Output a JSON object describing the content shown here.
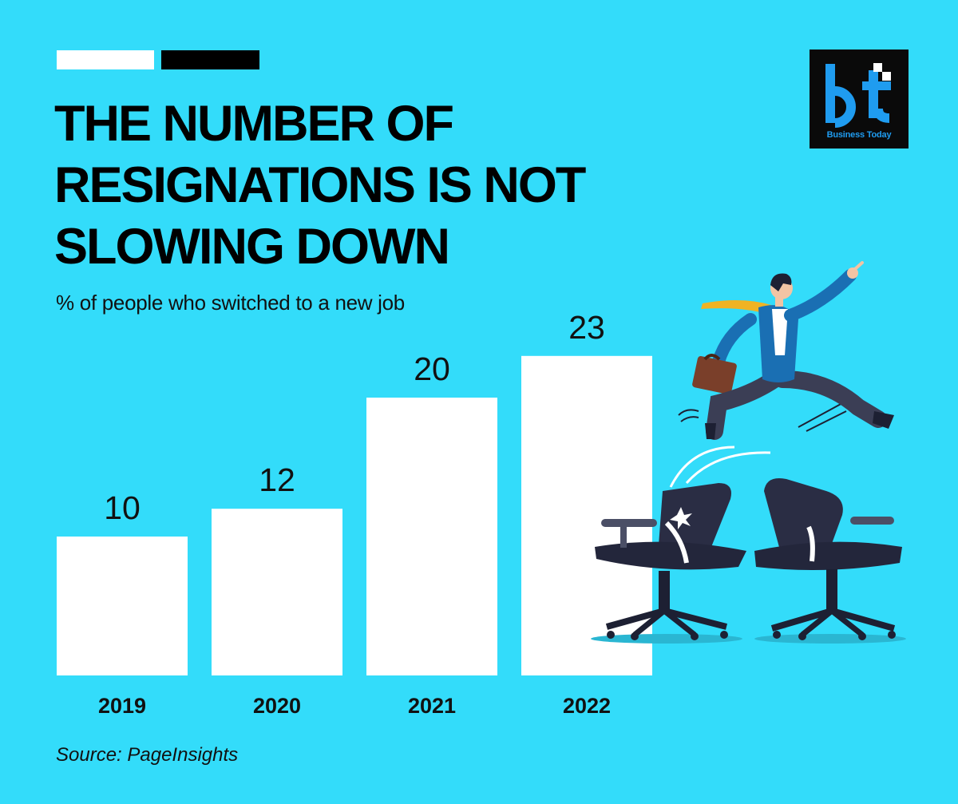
{
  "title_lines": [
    "THE NUMBER OF",
    "RESIGNATIONS IS NOT",
    "SLOWING DOWN"
  ],
  "subtitle": "% of people who switched to a new job",
  "source": "Source: PageInsights",
  "logo": {
    "mark": "bt",
    "text": "Business Today"
  },
  "colors": {
    "background": "#33dcfa",
    "bar": "#ffffff",
    "text": "#111111",
    "logo_accent": "#1f9cf0"
  },
  "chart_data": {
    "type": "bar",
    "categories": [
      "2019",
      "2020",
      "2021",
      "2022"
    ],
    "values": [
      10,
      12,
      20,
      23
    ],
    "title": "THE NUMBER OF RESIGNATIONS IS NOT SLOWING DOWN",
    "subtitle": "% of people who switched to a new job",
    "xlabel": "",
    "ylabel": "",
    "ylim": [
      0,
      26
    ],
    "grid": false,
    "data_labels": true
  }
}
